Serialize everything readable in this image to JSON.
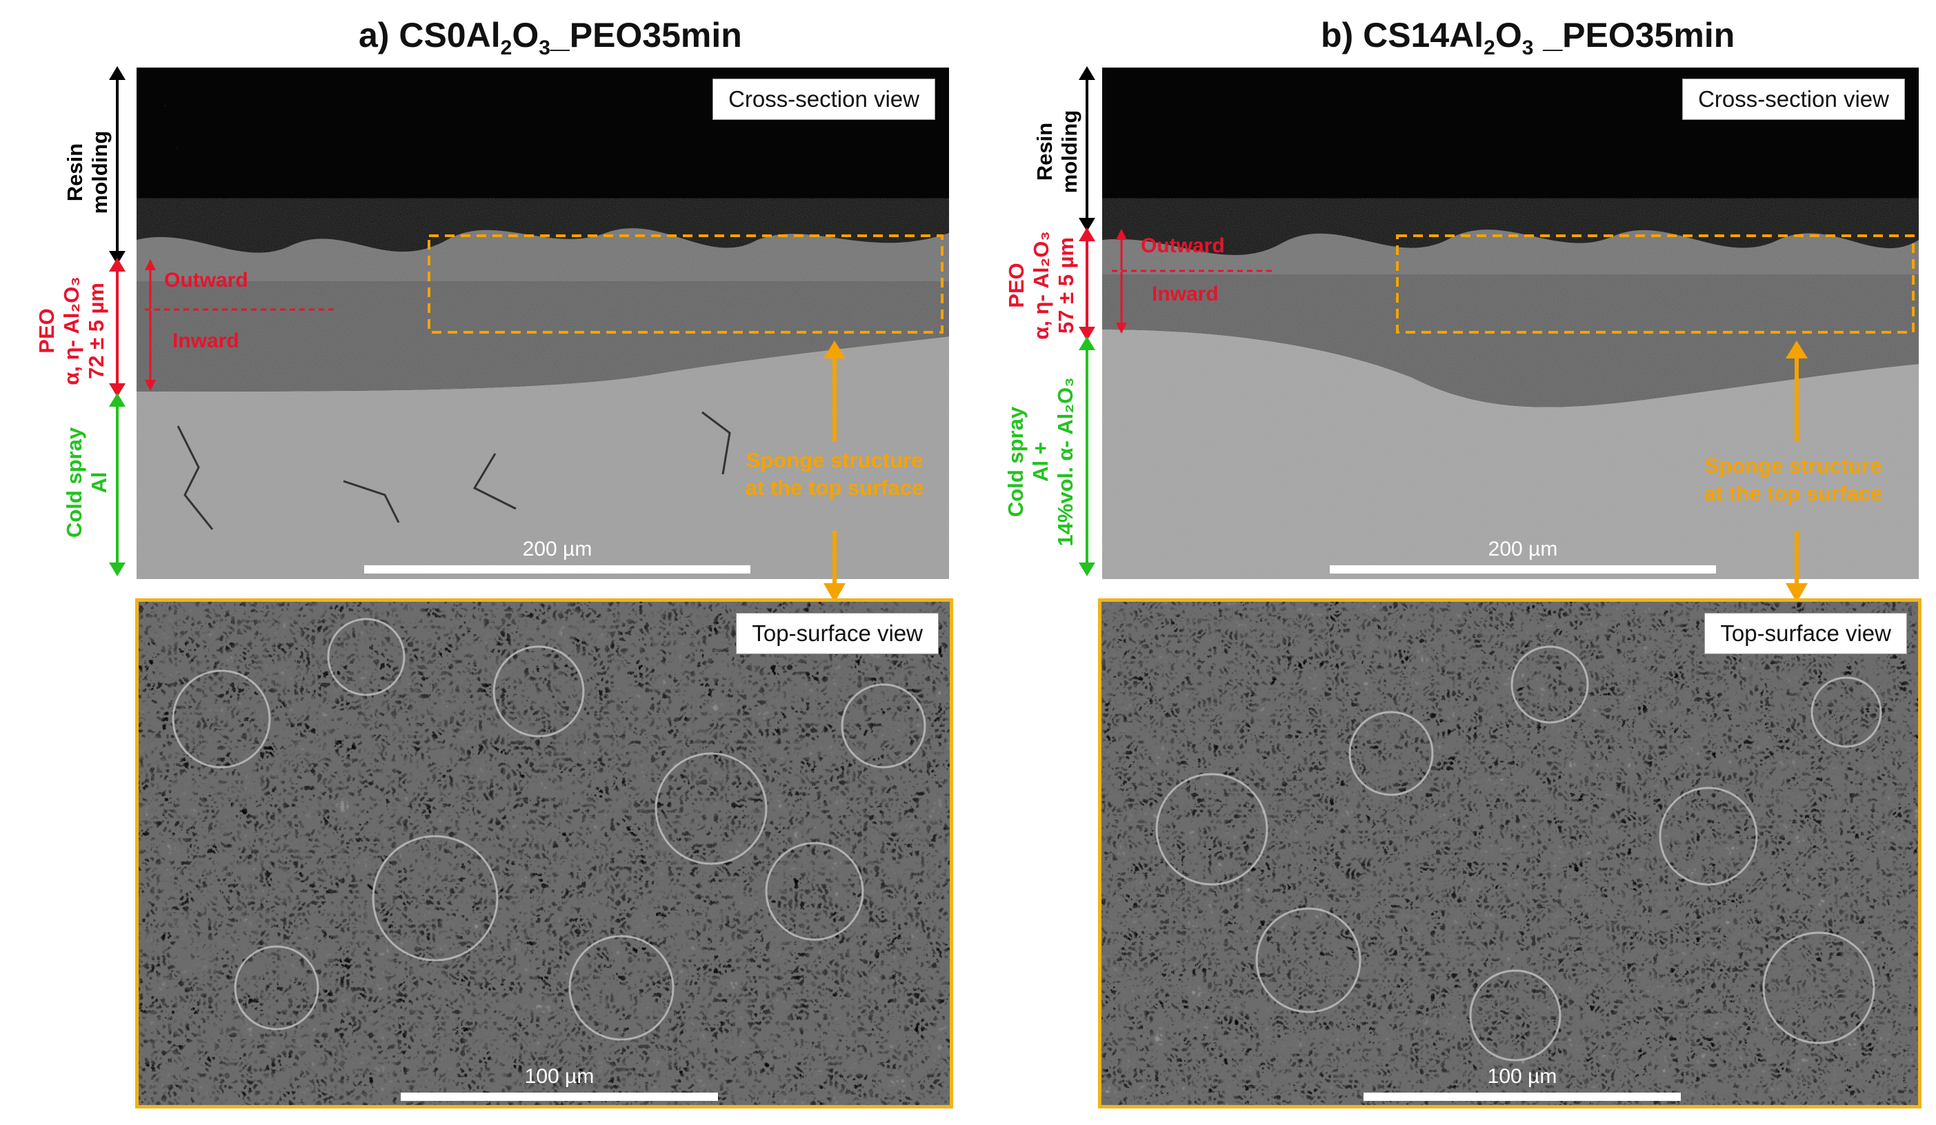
{
  "panels": [
    {
      "title_main": "a) CS0Al",
      "title_sub1": "2",
      "title_mid": "O",
      "title_sub2": "3",
      "title_tail": "_PEO35min",
      "cross_label": "Cross-section view",
      "top_label": "Top-surface view",
      "cross_scale": "200 µm",
      "top_scale": "100 µm",
      "resin": [
        "Resin",
        "molding"
      ],
      "peo": [
        "PEO",
        "α, η- Al₂O₃",
        "72 ± 5 µm"
      ],
      "substrate": [
        "Cold spray",
        "Al"
      ],
      "outward": "Outward",
      "inward": "Inward",
      "sponge": [
        "Sponge structure",
        "at the top surface"
      ]
    },
    {
      "title_main": "b) CS14Al",
      "title_sub1": "2",
      "title_mid": "O",
      "title_sub2": "3",
      "title_tail": " _PEO35min",
      "cross_label": "Cross-section view",
      "top_label": "Top-surface view",
      "cross_scale": "200 µm",
      "top_scale": "100 µm",
      "resin": [
        "Resin",
        "molding"
      ],
      "peo": [
        "PEO",
        "α, η- Al₂O₃",
        "57 ± 5 µm"
      ],
      "substrate": [
        "Cold spray",
        "Al +",
        "14%vol. α- Al₂O₃"
      ],
      "outward": "Outward",
      "inward": "Inward",
      "sponge": [
        "Sponge structure",
        "at the top surface"
      ]
    }
  ],
  "colors": {
    "peo": "#e8132b",
    "substrate": "#23c21f",
    "highlight": "#f5a300",
    "frame": "#f0b418"
  }
}
